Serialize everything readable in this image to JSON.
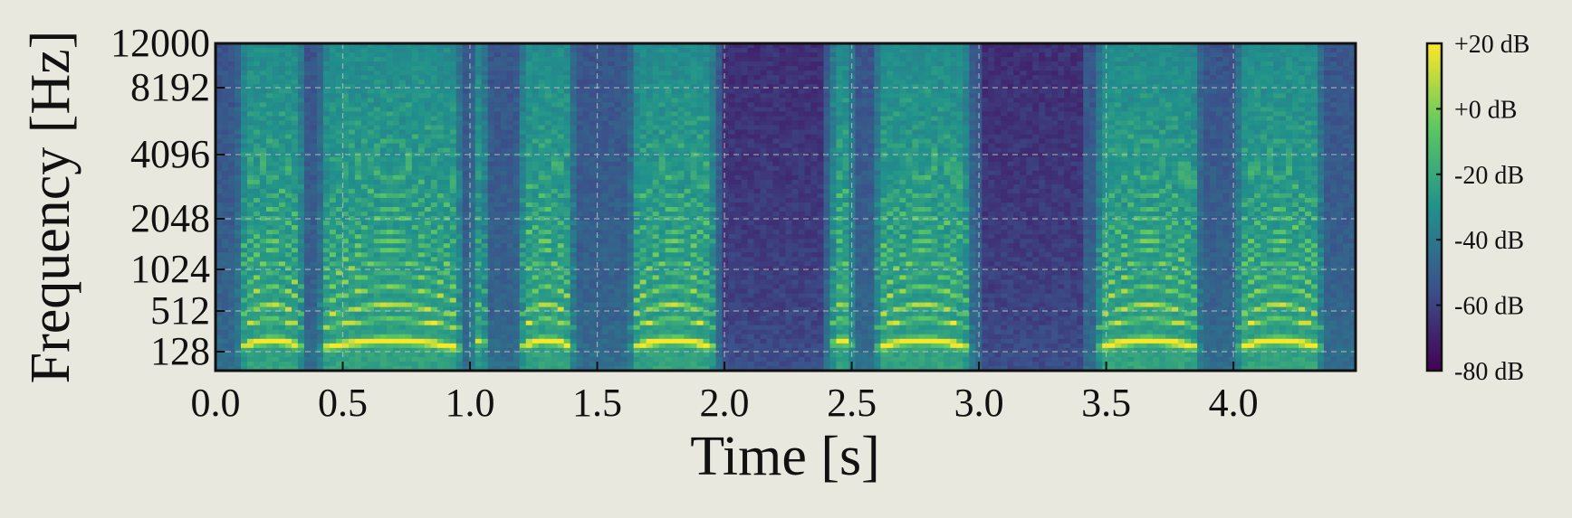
{
  "chart_data": {
    "type": "heatmap",
    "kind": "spectrogram",
    "title": "",
    "xlabel": "Time [s]",
    "ylabel": "Frequency [Hz]",
    "xlim": [
      0.0,
      4.48
    ],
    "ylim": [
      64,
      12000
    ],
    "yscale": "log-like (symlog)",
    "x_ticks": [
      0.0,
      0.5,
      1.0,
      1.5,
      2.0,
      2.5,
      3.0,
      3.5,
      4.0
    ],
    "x_tick_labels": [
      "0.0",
      "0.5",
      "1.0",
      "1.5",
      "2.0",
      "2.5",
      "3.0",
      "3.5",
      "4.0"
    ],
    "y_ticks": [
      128,
      512,
      1024,
      2048,
      4096,
      8192,
      12000
    ],
    "y_tick_labels": [
      "128",
      "512",
      "1024",
      "2048",
      "4096",
      "8192",
      "12000"
    ],
    "grid": true,
    "colormap": "viridis",
    "colorbar": {
      "range": [
        -80,
        20
      ],
      "units": "dB",
      "ticks": [
        20,
        0,
        -20,
        -40,
        -60,
        -80
      ],
      "tick_labels": [
        "+20 dB",
        "+0 dB",
        "-20 dB",
        "-40 dB",
        "-60 dB",
        "-80 dB"
      ],
      "colors": [
        "#440154",
        "#3b528b",
        "#21918c",
        "#5ec962",
        "#fde725"
      ]
    },
    "voiced_segments_s": [
      [
        0.08,
        0.36
      ],
      [
        0.4,
        0.98
      ],
      [
        1.0,
        1.08
      ],
      [
        1.18,
        1.42
      ],
      [
        1.62,
        1.98
      ],
      [
        2.4,
        2.52
      ],
      [
        2.58,
        2.98
      ],
      [
        3.45,
        3.88
      ],
      [
        4.0,
        4.36
      ]
    ],
    "approx_f0_hz": 140,
    "background": "#e8e8de"
  }
}
